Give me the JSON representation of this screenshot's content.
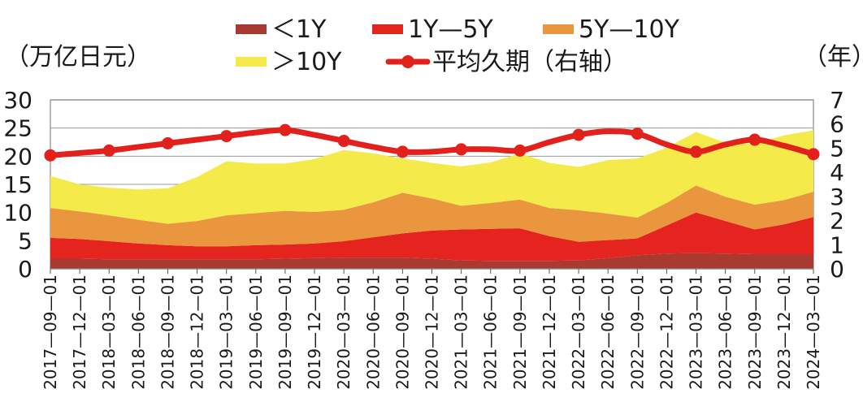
{
  "chart_data": {
    "type": "area",
    "stacked": true,
    "title": "",
    "xlabel": "",
    "ylabel": "（万亿日元）",
    "y2label": "（年）",
    "ylim": [
      0,
      30
    ],
    "y2lim": [
      0,
      7
    ],
    "yticks": [
      "0",
      "5",
      "10",
      "15",
      "20",
      "25",
      "30"
    ],
    "y2ticks": [
      "0",
      "1",
      "2",
      "3",
      "4",
      "5",
      "6",
      "7"
    ],
    "grid": true,
    "legend_position": "top",
    "categories": [
      "2017-09-01",
      "2017-12-01",
      "2018-03-01",
      "2018-06-01",
      "2018-09-01",
      "2018-12-01",
      "2019-03-01",
      "2019-06-01",
      "2019-09-01",
      "2019-12-01",
      "2020-03-01",
      "2020-06-01",
      "2020-09-01",
      "2020-12-01",
      "2021-03-01",
      "2021-06-01",
      "2021-09-01",
      "2021-12-01",
      "2022-03-01",
      "2022-06-01",
      "2022-09-01",
      "2022-12-01",
      "2023-03-01",
      "2023-06-01",
      "2023-09-01",
      "2023-12-01",
      "2024-03-01"
    ],
    "xtick_labels": [
      "2017—09—01",
      "2017—12—01",
      "2018—03—01",
      "2018—06—01",
      "2018—09—01",
      "2018—12—01",
      "2019—03—01",
      "2019—06—01",
      "2019—09—01",
      "2019—12—01",
      "2020—03—01",
      "2020—06—01",
      "2020—09—01",
      "2020—12—01",
      "2021—03—01",
      "2021—06—01",
      "2021—09—01",
      "2021—12—01",
      "2022—03—01",
      "2022—06—01",
      "2022—09—01",
      "2022—12—01",
      "2023—03—01",
      "2023—06—01",
      "2023—09—01",
      "2023—12—01",
      "2024—03—01"
    ],
    "series": [
      {
        "name": "＜1Y",
        "color": "#a83a32",
        "values": [
          1.8,
          1.8,
          1.7,
          1.7,
          1.7,
          1.7,
          1.7,
          1.7,
          1.8,
          1.9,
          2.0,
          2.0,
          2.0,
          1.8,
          1.5,
          1.4,
          1.4,
          1.4,
          1.5,
          1.9,
          2.4,
          2.7,
          2.8,
          2.7,
          2.6,
          2.6,
          2.6
        ]
      },
      {
        "name": "1Y—5Y",
        "color": "#e52420",
        "values": [
          3.7,
          3.5,
          3.2,
          2.8,
          2.5,
          2.3,
          2.3,
          2.5,
          2.5,
          2.6,
          2.9,
          3.6,
          4.3,
          5.0,
          5.5,
          5.7,
          5.8,
          4.4,
          3.3,
          3.2,
          3.0,
          5.0,
          7.2,
          5.8,
          4.4,
          5.3,
          6.6
        ]
      },
      {
        "name": "5Y—10Y",
        "color": "#e9963f",
        "values": [
          5.3,
          4.9,
          4.6,
          4.2,
          3.8,
          4.5,
          5.5,
          5.7,
          6.0,
          5.6,
          5.6,
          6.2,
          7.2,
          5.7,
          4.2,
          4.6,
          5.1,
          5.0,
          5.6,
          4.7,
          3.7,
          4.0,
          4.8,
          4.3,
          4.4,
          4.3,
          4.5
        ]
      },
      {
        "name": "＞10Y",
        "color": "#f4ea4a",
        "values": [
          5.7,
          4.8,
          4.9,
          5.4,
          6.3,
          7.8,
          9.6,
          8.8,
          8.4,
          9.4,
          10.6,
          8.7,
          6.1,
          6.3,
          7.0,
          7.2,
          8.2,
          8.0,
          7.7,
          9.5,
          10.5,
          9.8,
          9.5,
          9.6,
          10.8,
          11.5,
          10.9
        ]
      }
    ],
    "line_series": {
      "name": "平均久期（右轴）",
      "axis": "right",
      "color": "#e3211c",
      "values": [
        4.7,
        4.8,
        4.9,
        5.05,
        5.2,
        5.35,
        5.5,
        5.65,
        5.75,
        5.55,
        5.3,
        5.05,
        4.85,
        4.85,
        4.95,
        4.95,
        4.9,
        5.25,
        5.55,
        5.7,
        5.6,
        5.15,
        4.85,
        5.15,
        5.35,
        5.1,
        4.75
      ],
      "markers_at": [
        0,
        2,
        4,
        6,
        8,
        10,
        12,
        14,
        16,
        18,
        20,
        22,
        24,
        26
      ]
    }
  }
}
